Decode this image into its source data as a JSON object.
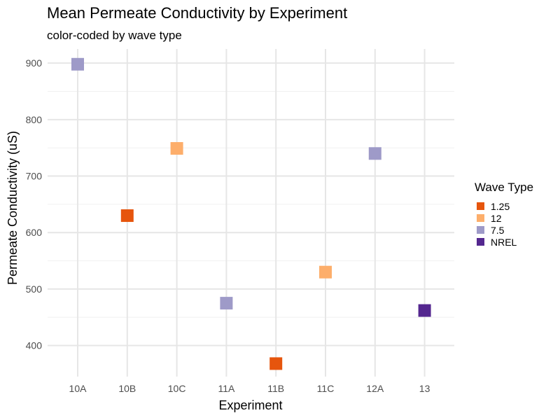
{
  "chart_data": {
    "type": "scatter",
    "title": "Mean Permeate Conductivity by Experiment",
    "subtitle": "color-coded by wave type",
    "xlabel": "Experiment",
    "ylabel": "Permeate Conductivity (uS)",
    "categories": [
      "10A",
      "10B",
      "10C",
      "11A",
      "11B",
      "11C",
      "12A",
      "13"
    ],
    "yticks": [
      400,
      500,
      600,
      700,
      800,
      900
    ],
    "ylim": [
      345,
      925
    ],
    "grid": true,
    "legend": {
      "title": "Wave Type",
      "placement": "right",
      "entries": [
        {
          "label": "1.25",
          "color": "#e6550d"
        },
        {
          "label": "12",
          "color": "#fdae6b"
        },
        {
          "label": "7.5",
          "color": "#9e9ac8"
        },
        {
          "label": "NREL",
          "color": "#54278f"
        }
      ]
    },
    "points": [
      {
        "x": "10A",
        "y": 898,
        "group": "7.5"
      },
      {
        "x": "10B",
        "y": 630,
        "group": "1.25"
      },
      {
        "x": "10C",
        "y": 749,
        "group": "12"
      },
      {
        "x": "11A",
        "y": 475,
        "group": "7.5"
      },
      {
        "x": "11B",
        "y": 368,
        "group": "1.25"
      },
      {
        "x": "11C",
        "y": 530,
        "group": "12"
      },
      {
        "x": "12A",
        "y": 740,
        "group": "7.5"
      },
      {
        "x": "13",
        "y": 462,
        "group": "NREL"
      }
    ]
  }
}
